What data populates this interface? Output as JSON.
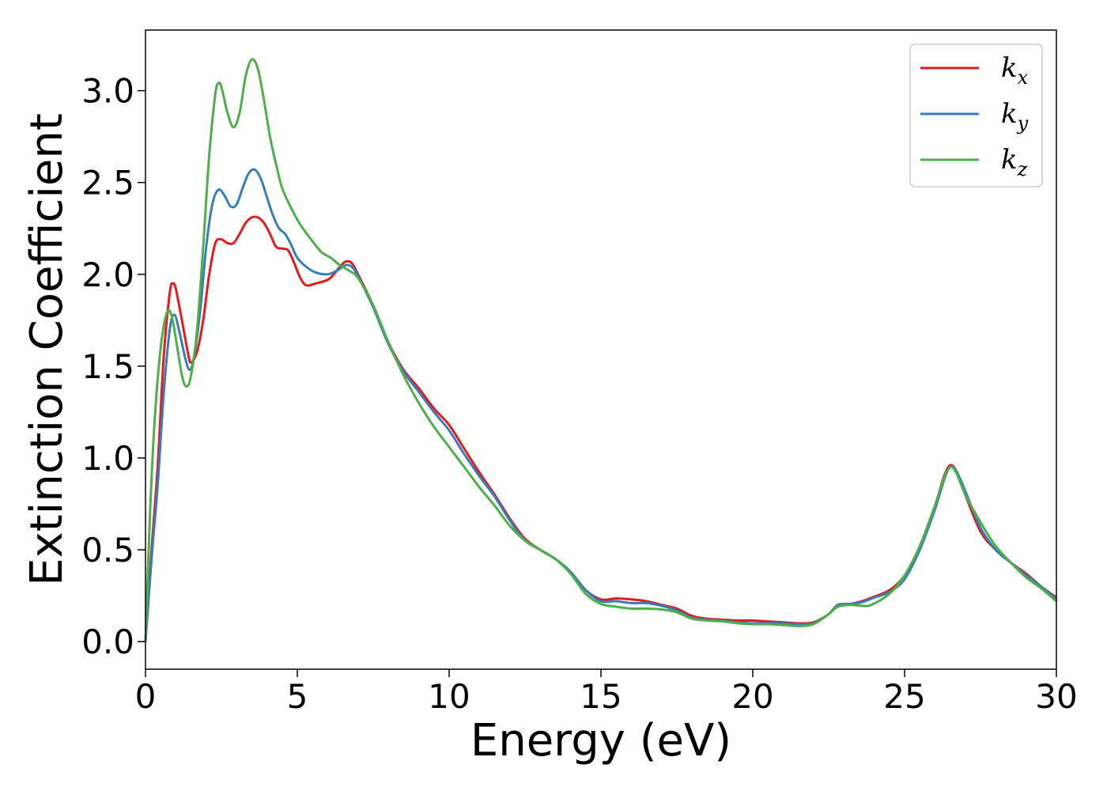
{
  "chart_data": {
    "type": "line",
    "xlabel": "Energy (eV)",
    "ylabel": "Extinction Coefficient",
    "xlim": [
      0,
      30
    ],
    "ylim": [
      -0.15,
      3.33
    ],
    "xticks": [
      "0",
      "5",
      "10",
      "15",
      "20",
      "25",
      "30"
    ],
    "yticks": [
      "0.0",
      "0.5",
      "1.0",
      "1.5",
      "2.0",
      "2.5",
      "3.0"
    ],
    "grid": false,
    "legend_position": "top-right",
    "series": [
      {
        "name": "k",
        "subscript": "x",
        "color": "#e41a1c",
        "points": [
          [
            0,
            0.0
          ],
          [
            0.2,
            0.5
          ],
          [
            0.4,
            0.95
          ],
          [
            0.6,
            1.55
          ],
          [
            0.8,
            1.9
          ],
          [
            0.9,
            1.95
          ],
          [
            1.0,
            1.92
          ],
          [
            1.2,
            1.75
          ],
          [
            1.4,
            1.57
          ],
          [
            1.5,
            1.52
          ],
          [
            1.7,
            1.58
          ],
          [
            1.9,
            1.75
          ],
          [
            2.1,
            2.0
          ],
          [
            2.3,
            2.17
          ],
          [
            2.5,
            2.19
          ],
          [
            2.7,
            2.17
          ],
          [
            2.9,
            2.17
          ],
          [
            3.1,
            2.22
          ],
          [
            3.3,
            2.28
          ],
          [
            3.5,
            2.31
          ],
          [
            3.7,
            2.31
          ],
          [
            3.9,
            2.28
          ],
          [
            4.1,
            2.22
          ],
          [
            4.3,
            2.15
          ],
          [
            4.5,
            2.14
          ],
          [
            4.7,
            2.13
          ],
          [
            4.9,
            2.06
          ],
          [
            5.1,
            1.98
          ],
          [
            5.3,
            1.94
          ],
          [
            5.6,
            1.95
          ],
          [
            6.0,
            1.97
          ],
          [
            6.2,
            2.0
          ],
          [
            6.4,
            2.04
          ],
          [
            6.6,
            2.07
          ],
          [
            6.8,
            2.06
          ],
          [
            7.0,
            2.0
          ],
          [
            7.5,
            1.83
          ],
          [
            8.0,
            1.63
          ],
          [
            8.5,
            1.48
          ],
          [
            9.0,
            1.38
          ],
          [
            9.5,
            1.27
          ],
          [
            10.0,
            1.18
          ],
          [
            10.5,
            1.05
          ],
          [
            11.0,
            0.92
          ],
          [
            11.5,
            0.8
          ],
          [
            12.0,
            0.67
          ],
          [
            12.5,
            0.56
          ],
          [
            13.0,
            0.5
          ],
          [
            13.5,
            0.45
          ],
          [
            14.0,
            0.38
          ],
          [
            14.5,
            0.28
          ],
          [
            15.0,
            0.23
          ],
          [
            15.5,
            0.235
          ],
          [
            16.0,
            0.23
          ],
          [
            16.5,
            0.22
          ],
          [
            17.0,
            0.2
          ],
          [
            17.5,
            0.18
          ],
          [
            18.0,
            0.14
          ],
          [
            18.5,
            0.125
          ],
          [
            19.0,
            0.12
          ],
          [
            19.5,
            0.115
          ],
          [
            20.0,
            0.115
          ],
          [
            20.5,
            0.11
          ],
          [
            21.0,
            0.105
          ],
          [
            21.5,
            0.1
          ],
          [
            22.0,
            0.105
          ],
          [
            22.5,
            0.15
          ],
          [
            22.8,
            0.2
          ],
          [
            23.2,
            0.205
          ],
          [
            23.6,
            0.22
          ],
          [
            24.0,
            0.245
          ],
          [
            24.5,
            0.28
          ],
          [
            25.0,
            0.36
          ],
          [
            25.5,
            0.52
          ],
          [
            26.0,
            0.74
          ],
          [
            26.3,
            0.9
          ],
          [
            26.5,
            0.96
          ],
          [
            26.7,
            0.93
          ],
          [
            27.0,
            0.8
          ],
          [
            27.5,
            0.6
          ],
          [
            28.0,
            0.5
          ],
          [
            28.5,
            0.43
          ],
          [
            29.0,
            0.37
          ],
          [
            29.5,
            0.3
          ],
          [
            30.0,
            0.24
          ]
        ]
      },
      {
        "name": "k",
        "subscript": "y",
        "color": "#377eb8",
        "points": [
          [
            0,
            0.0
          ],
          [
            0.2,
            0.45
          ],
          [
            0.4,
            0.85
          ],
          [
            0.6,
            1.35
          ],
          [
            0.8,
            1.7
          ],
          [
            0.95,
            1.78
          ],
          [
            1.1,
            1.7
          ],
          [
            1.3,
            1.55
          ],
          [
            1.45,
            1.48
          ],
          [
            1.6,
            1.55
          ],
          [
            1.8,
            1.8
          ],
          [
            2.0,
            2.15
          ],
          [
            2.2,
            2.38
          ],
          [
            2.4,
            2.46
          ],
          [
            2.6,
            2.43
          ],
          [
            2.8,
            2.37
          ],
          [
            3.0,
            2.38
          ],
          [
            3.2,
            2.47
          ],
          [
            3.4,
            2.55
          ],
          [
            3.6,
            2.57
          ],
          [
            3.8,
            2.52
          ],
          [
            4.0,
            2.42
          ],
          [
            4.2,
            2.32
          ],
          [
            4.4,
            2.25
          ],
          [
            4.6,
            2.22
          ],
          [
            4.8,
            2.16
          ],
          [
            5.0,
            2.09
          ],
          [
            5.3,
            2.04
          ],
          [
            5.6,
            2.01
          ],
          [
            6.0,
            2.0
          ],
          [
            6.3,
            2.02
          ],
          [
            6.6,
            2.05
          ],
          [
            6.8,
            2.04
          ],
          [
            7.0,
            1.99
          ],
          [
            7.5,
            1.82
          ],
          [
            8.0,
            1.62
          ],
          [
            8.5,
            1.47
          ],
          [
            9.0,
            1.36
          ],
          [
            9.5,
            1.25
          ],
          [
            10.0,
            1.15
          ],
          [
            10.5,
            1.02
          ],
          [
            11.0,
            0.9
          ],
          [
            11.5,
            0.79
          ],
          [
            12.0,
            0.66
          ],
          [
            12.5,
            0.55
          ],
          [
            13.0,
            0.5
          ],
          [
            13.5,
            0.45
          ],
          [
            14.0,
            0.38
          ],
          [
            14.5,
            0.28
          ],
          [
            15.0,
            0.22
          ],
          [
            15.5,
            0.22
          ],
          [
            16.0,
            0.21
          ],
          [
            16.5,
            0.21
          ],
          [
            17.0,
            0.195
          ],
          [
            17.5,
            0.17
          ],
          [
            18.0,
            0.13
          ],
          [
            18.5,
            0.12
          ],
          [
            19.0,
            0.115
          ],
          [
            19.5,
            0.105
          ],
          [
            20.0,
            0.1
          ],
          [
            20.5,
            0.1
          ],
          [
            21.0,
            0.1
          ],
          [
            21.5,
            0.095
          ],
          [
            22.0,
            0.1
          ],
          [
            22.5,
            0.15
          ],
          [
            22.8,
            0.2
          ],
          [
            23.2,
            0.205
          ],
          [
            23.6,
            0.215
          ],
          [
            24.0,
            0.24
          ],
          [
            24.5,
            0.27
          ],
          [
            25.0,
            0.34
          ],
          [
            25.5,
            0.5
          ],
          [
            26.0,
            0.72
          ],
          [
            26.3,
            0.88
          ],
          [
            26.5,
            0.95
          ],
          [
            26.7,
            0.93
          ],
          [
            27.0,
            0.82
          ],
          [
            27.5,
            0.62
          ],
          [
            28.0,
            0.5
          ],
          [
            28.5,
            0.43
          ],
          [
            29.0,
            0.36
          ],
          [
            29.5,
            0.3
          ],
          [
            30.0,
            0.23
          ]
        ]
      },
      {
        "name": "k",
        "subscript": "z",
        "color": "#4daf4a",
        "points": [
          [
            0,
            0.0
          ],
          [
            0.15,
            0.7
          ],
          [
            0.3,
            1.2
          ],
          [
            0.5,
            1.6
          ],
          [
            0.7,
            1.79
          ],
          [
            0.85,
            1.78
          ],
          [
            1.0,
            1.65
          ],
          [
            1.2,
            1.45
          ],
          [
            1.35,
            1.39
          ],
          [
            1.5,
            1.45
          ],
          [
            1.7,
            1.7
          ],
          [
            1.9,
            2.15
          ],
          [
            2.1,
            2.65
          ],
          [
            2.3,
            2.98
          ],
          [
            2.4,
            3.04
          ],
          [
            2.5,
            3.02
          ],
          [
            2.7,
            2.88
          ],
          [
            2.9,
            2.8
          ],
          [
            3.1,
            2.88
          ],
          [
            3.3,
            3.08
          ],
          [
            3.5,
            3.17
          ],
          [
            3.7,
            3.12
          ],
          [
            3.9,
            2.95
          ],
          [
            4.1,
            2.75
          ],
          [
            4.3,
            2.6
          ],
          [
            4.5,
            2.47
          ],
          [
            4.8,
            2.36
          ],
          [
            5.1,
            2.27
          ],
          [
            5.5,
            2.18
          ],
          [
            5.8,
            2.12
          ],
          [
            6.1,
            2.09
          ],
          [
            6.4,
            2.05
          ],
          [
            6.7,
            2.02
          ],
          [
            7.0,
            1.98
          ],
          [
            7.5,
            1.83
          ],
          [
            8.0,
            1.63
          ],
          [
            8.5,
            1.45
          ],
          [
            9.0,
            1.3
          ],
          [
            9.5,
            1.17
          ],
          [
            10.0,
            1.06
          ],
          [
            10.5,
            0.95
          ],
          [
            11.0,
            0.84
          ],
          [
            11.5,
            0.74
          ],
          [
            12.0,
            0.63
          ],
          [
            12.5,
            0.55
          ],
          [
            13.0,
            0.5
          ],
          [
            13.5,
            0.45
          ],
          [
            14.0,
            0.37
          ],
          [
            14.5,
            0.26
          ],
          [
            15.0,
            0.205
          ],
          [
            15.5,
            0.19
          ],
          [
            16.0,
            0.18
          ],
          [
            16.5,
            0.18
          ],
          [
            17.0,
            0.175
          ],
          [
            17.5,
            0.16
          ],
          [
            18.0,
            0.125
          ],
          [
            18.5,
            0.115
          ],
          [
            19.0,
            0.11
          ],
          [
            19.5,
            0.1
          ],
          [
            20.0,
            0.095
          ],
          [
            20.5,
            0.095
          ],
          [
            21.0,
            0.09
          ],
          [
            21.5,
            0.085
          ],
          [
            22.0,
            0.095
          ],
          [
            22.5,
            0.15
          ],
          [
            22.8,
            0.19
          ],
          [
            23.2,
            0.2
          ],
          [
            23.6,
            0.195
          ],
          [
            23.9,
            0.2
          ],
          [
            24.5,
            0.26
          ],
          [
            25.0,
            0.36
          ],
          [
            25.5,
            0.52
          ],
          [
            26.0,
            0.74
          ],
          [
            26.3,
            0.89
          ],
          [
            26.5,
            0.95
          ],
          [
            26.7,
            0.92
          ],
          [
            27.0,
            0.8
          ],
          [
            27.5,
            0.65
          ],
          [
            28.0,
            0.52
          ],
          [
            28.5,
            0.43
          ],
          [
            29.0,
            0.35
          ],
          [
            29.5,
            0.29
          ],
          [
            30.0,
            0.22
          ]
        ]
      }
    ]
  }
}
